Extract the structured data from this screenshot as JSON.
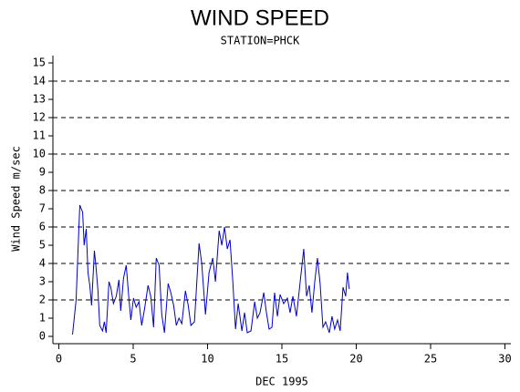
{
  "chart_data": {
    "type": "line",
    "title": "WIND SPEED",
    "subtitle": "STATION=PHCK",
    "x_label": "DEC 1995",
    "y_label": "Wind Speed m/sec",
    "xlim": [
      -0.4,
      30.4
    ],
    "xticks": [
      0,
      5,
      10,
      15,
      20,
      25,
      30
    ],
    "ylim": [
      -0.4,
      15.4
    ],
    "yticks": [
      0,
      1,
      2,
      3,
      4,
      5,
      6,
      7,
      8,
      9,
      10,
      11,
      12,
      13,
      14,
      15
    ],
    "grid": "dashed",
    "series": [
      {
        "color": "#0000cc",
        "x": [
          0.92,
          1.16,
          1.35,
          1.41,
          1.6,
          1.7,
          1.84,
          1.96,
          2.08,
          2.2,
          2.39,
          2.5,
          2.63,
          2.75,
          2.94,
          3.06,
          3.18,
          3.37,
          3.49,
          3.67,
          3.86,
          4.04,
          4.16,
          4.35,
          4.53,
          4.72,
          4.84,
          5.02,
          5.2,
          5.39,
          5.57,
          5.76,
          6.0,
          6.18,
          6.37,
          6.55,
          6.74,
          6.92,
          7.1,
          7.35,
          7.53,
          7.72,
          7.9,
          8.08,
          8.27,
          8.51,
          8.7,
          8.88,
          9.12,
          9.43,
          9.61,
          9.86,
          10.1,
          10.35,
          10.53,
          10.78,
          10.96,
          11.14,
          11.33,
          11.51,
          11.7,
          11.88,
          12.06,
          12.31,
          12.49,
          12.67,
          12.92,
          13.17,
          13.35,
          13.53,
          13.78,
          13.96,
          14.14,
          14.33,
          14.51,
          14.7,
          14.88,
          15.12,
          15.37,
          15.55,
          15.74,
          15.98,
          16.23,
          16.47,
          16.66,
          16.84,
          17.02,
          17.21,
          17.39,
          17.57,
          17.76,
          17.94,
          18.19,
          18.37,
          18.55,
          18.74,
          18.92,
          19.11,
          19.29,
          19.41,
          19.53
        ],
        "values": [
          0.1,
          2,
          6,
          7.2,
          6.8,
          5,
          5.9,
          3.5,
          2.8,
          1.7,
          4.7,
          3.8,
          2.5,
          0.6,
          0.3,
          0.8,
          0.2,
          3.0,
          2.7,
          1.8,
          2.2,
          3.1,
          1.4,
          3.2,
          3.9,
          2.0,
          0.9,
          2.1,
          1.6,
          1.9,
          0.6,
          1.5,
          2.8,
          2.2,
          0.5,
          4.3,
          3.9,
          1.2,
          0.2,
          2.9,
          2.4,
          1.7,
          0.6,
          1.0,
          0.7,
          2.5,
          1.7,
          0.6,
          0.8,
          5.1,
          4.0,
          1.2,
          3.5,
          4.3,
          3.0,
          5.8,
          5.0,
          6.0,
          4.8,
          5.3,
          3.0,
          0.4,
          1.8,
          0.3,
          1.3,
          0.2,
          0.3,
          1.9,
          1.0,
          1.3,
          2.4,
          1.3,
          0.4,
          0.5,
          2.4,
          1.1,
          2.3,
          1.8,
          2.1,
          1.3,
          2.2,
          1.1,
          3.0,
          4.8,
          2.2,
          2.8,
          1.3,
          3.0,
          4.3,
          2.9,
          0.5,
          0.8,
          0.2,
          1.1,
          0.4,
          0.9,
          0.3,
          2.7,
          2.2,
          3.5,
          2.6
        ]
      }
    ]
  }
}
